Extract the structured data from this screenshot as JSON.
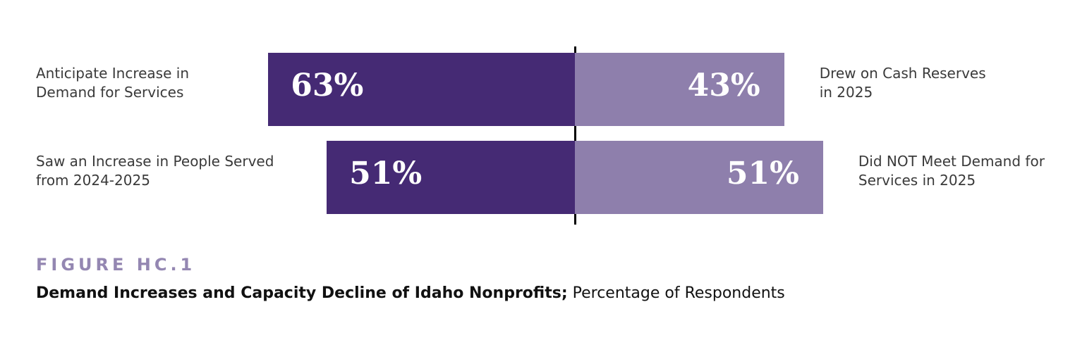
{
  "colors": {
    "dark_purple": "#452a74",
    "light_purple": "#8e7fac",
    "figure_label": "#9487b2"
  },
  "figure": {
    "label": "FIGURE HC.1",
    "title_bold": "Demand Increases and Capacity Decline of Idaho Nonprofits;",
    "title_regular": " Percentage of Respondents"
  },
  "chart_data": {
    "type": "bar",
    "orientation": "horizontal-diverging",
    "unit": "%",
    "xlim": [
      0,
      100
    ],
    "rows": [
      {
        "left": {
          "label": "Anticipate Increase in\nDemand for Services",
          "value": 63,
          "value_label": "63%"
        },
        "right": {
          "label": "Drew on Cash Reserves\nin 2025",
          "value": 43,
          "value_label": "43%"
        }
      },
      {
        "left": {
          "label": "Saw an Increase in People Served\nfrom 2024-2025",
          "value": 51,
          "value_label": "51%"
        },
        "right": {
          "label": "Did NOT Meet Demand for\nServices in 2025",
          "value": 51,
          "value_label": "51%"
        }
      }
    ]
  }
}
